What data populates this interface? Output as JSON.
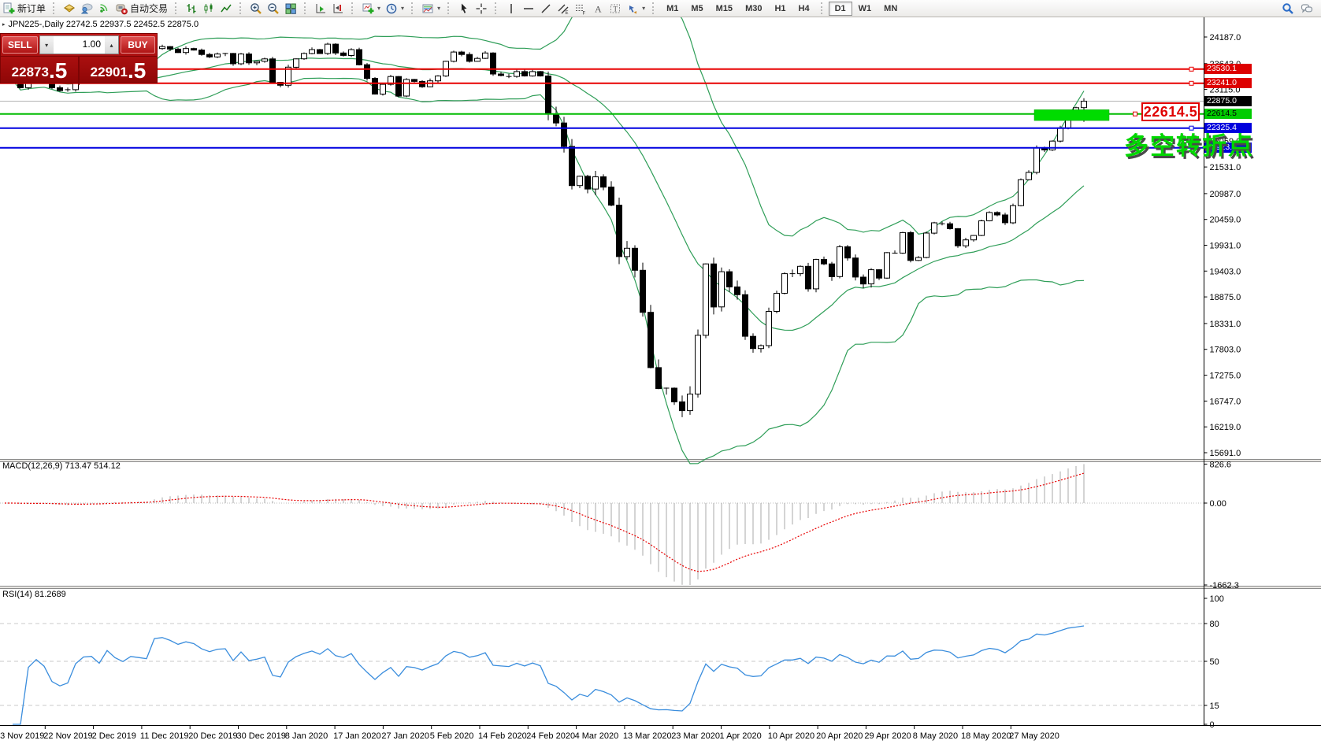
{
  "toolbar": {
    "new_order": "新订单",
    "autotrading": "自动交易",
    "timeframes": [
      "M1",
      "M5",
      "M15",
      "M30",
      "H1",
      "H4",
      "D1",
      "W1",
      "MN"
    ],
    "active_timeframe": "D1"
  },
  "glyphs": {
    "caret_down": "▾",
    "caret_up": "▴",
    "title_marker": "▸"
  },
  "chart": {
    "title": "JPN225-,Daily  22742.5 22937.5 22452.5 22875.0",
    "symbol": "JPN225-",
    "period": "Daily"
  },
  "trade_panel": {
    "sell_label": "SELL",
    "buy_label": "BUY",
    "volume": "1.00",
    "sell_price_int": "22873",
    "sell_price_frac": ".5",
    "buy_price_int": "22901",
    "buy_price_frac": ".5"
  },
  "price_box": "22614.5",
  "annotation": "多空转折点",
  "indicator_labels": {
    "macd": "MACD(12,26,9) 713.47 514.12",
    "rsi": "RSI(14) 81.2689"
  },
  "axes": {
    "price_ticks": [
      24187.0,
      23643.0,
      23115.0,
      22587.0,
      22059.0,
      21531.0,
      20987.0,
      20459.0,
      19931.0,
      19403.0,
      18875.0,
      18331.0,
      17803.0,
      17275.0,
      16747.0,
      16219.0,
      15691.0
    ],
    "price_labels": [
      {
        "text": "23530.1",
        "bg": "#dd0000",
        "fg": "#ffffff",
        "value": 23530.1
      },
      {
        "text": "23241.0",
        "bg": "#dd0000",
        "fg": "#ffffff",
        "value": 23241.0
      },
      {
        "text": "22875.0",
        "bg": "#000000",
        "fg": "#ffffff",
        "value": 22875.0
      },
      {
        "text": "22614.5",
        "bg": "#00cc00",
        "fg": "#000000",
        "value": 22614.5
      },
      {
        "text": "22325.4",
        "bg": "#0000dd",
        "fg": "#ffffff",
        "value": 22325.4
      },
      {
        "text": "21923.8",
        "bg": "#0000dd",
        "fg": "#ffffff",
        "value": 21923.8
      }
    ],
    "macd_ticks": [
      {
        "text": "826.6",
        "v": 826.6
      },
      {
        "text": "0.00",
        "v": 0
      },
      {
        "text": "-1662.3",
        "v": -1662.3
      }
    ],
    "rsi_ticks": [
      {
        "text": "100",
        "v": 100
      },
      {
        "text": "80",
        "v": 80
      },
      {
        "text": "50",
        "v": 50
      },
      {
        "text": "15",
        "v": 15
      },
      {
        "text": "0",
        "v": 0
      }
    ],
    "dates": [
      "13 Nov 2019",
      "22 Nov 2019",
      "2 Dec 2019",
      "11 Dec 2019",
      "20 Dec 2019",
      "30 Dec 2019",
      "8 Jan 2020",
      "17 Jan 2020",
      "27 Jan 2020",
      "5 Feb 2020",
      "14 Feb 2020",
      "24 Feb 2020",
      "4 Mar 2020",
      "13 Mar 2020",
      "23 Mar 2020",
      "1 Apr 2020",
      "10 Apr 2020",
      "20 Apr 2020",
      "29 Apr 2020",
      "8 May 2020",
      "18 May 2020",
      "27 May 2020"
    ]
  },
  "levels": [
    {
      "value": 23530.1,
      "color": "#e80000",
      "width": 2,
      "handle": "right"
    },
    {
      "value": 23241.0,
      "color": "#e80000",
      "width": 2,
      "handle": "right"
    },
    {
      "value": 22614.5,
      "color": "#00bb00",
      "width": 2,
      "handle": "mid"
    },
    {
      "value": 22325.4,
      "color": "#0000e0",
      "width": 2,
      "handle": "right"
    },
    {
      "value": 21923.8,
      "color": "#0000e0",
      "width": 2,
      "handle": "none"
    }
  ],
  "current_price": 22875.0,
  "chart_data": {
    "type": "candlestick",
    "symbol": "JPN225-",
    "timeframe": "Daily",
    "title": "JPN225-,Daily",
    "last_ohlc": {
      "open": 22742.5,
      "high": 22937.5,
      "low": 22452.5,
      "close": 22875.0
    },
    "price_axis_range": [
      15691.0,
      24187.0
    ],
    "closes": [
      23320,
      23310,
      23150,
      23290,
      23330,
      23290,
      23150,
      23090,
      23110,
      23290,
      23380,
      23390,
      23290,
      23530,
      23400,
      23320,
      23430,
      23410,
      23390,
      23950,
      23990,
      23940,
      23870,
      23950,
      23920,
      23830,
      23780,
      23840,
      23850,
      23640,
      23840,
      23660,
      23690,
      23740,
      23260,
      23200,
      23570,
      23740,
      23850,
      23930,
      23850,
      24040,
      23860,
      23810,
      23930,
      23620,
      23340,
      23020,
      23220,
      23380,
      22980,
      23320,
      23280,
      23170,
      23290,
      23390,
      23690,
      23880,
      23830,
      23690,
      23750,
      23860,
      23430,
      23400,
      23380,
      23480,
      23390,
      23480,
      23390,
      22610,
      22430,
      21950,
      21150,
      21340,
      21080,
      21330,
      21120,
      20750,
      19700,
      19870,
      19420,
      18560,
      17430,
      17000,
      17010,
      16730,
      16550,
      16890,
      18090,
      19550,
      18670,
      19390,
      19080,
      18920,
      18070,
      17820,
      17880,
      18580,
      18950,
      19350,
      19350,
      19500,
      19040,
      19640,
      19550,
      19290,
      19900,
      19670,
      19280,
      19140,
      19430,
      19260,
      19780,
      19770,
      20190,
      19620,
      19680,
      20180,
      20390,
      20370,
      20270,
      19920,
      20040,
      20130,
      20430,
      20600,
      20550,
      20390,
      20740,
      21270,
      21420,
      21920,
      21880,
      22060,
      22330,
      22615,
      22742,
      22875
    ],
    "green_zone": {
      "price_top": 22700,
      "price_bottom": 22480
    },
    "horizontal_levels": [
      23530.1,
      23241.0,
      22614.5,
      22325.4,
      21923.8
    ],
    "indicators": [
      {
        "name": "Bollinger Bands",
        "period": 20,
        "deviation": 2,
        "color": "green"
      },
      {
        "name": "MACD",
        "fast": 12,
        "slow": 26,
        "signal": 9,
        "value": 713.47,
        "signal_value": 514.12,
        "axis_range": [
          -1662.3,
          826.6
        ]
      },
      {
        "name": "RSI",
        "period": 14,
        "value": 81.2689,
        "levels": [
          15,
          50,
          80
        ],
        "axis_range": [
          0,
          100
        ]
      }
    ]
  }
}
